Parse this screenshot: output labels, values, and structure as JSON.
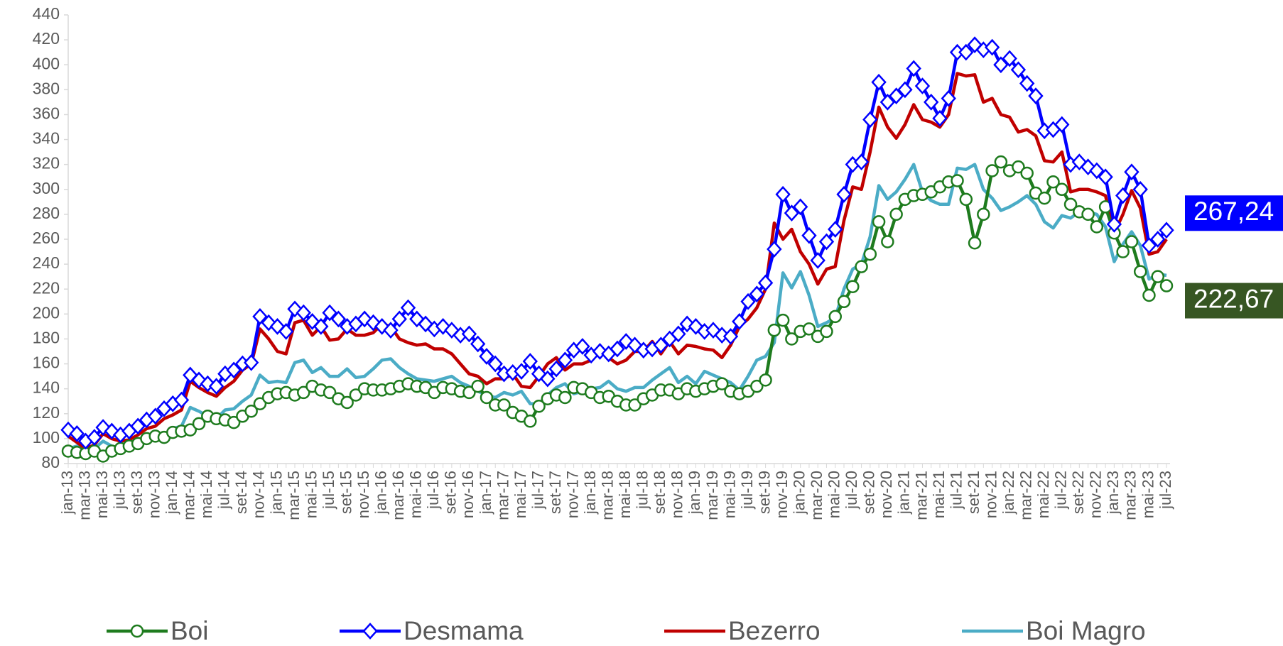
{
  "chart_data": {
    "type": "line",
    "categories": [
      "jan-13",
      null,
      "mar-13",
      null,
      "mai-13",
      null,
      "jul-13",
      null,
      "set-13",
      null,
      "nov-13",
      null,
      "jan-14",
      null,
      "mar-14",
      null,
      "mai-14",
      null,
      "jul-14",
      null,
      "set-14",
      null,
      "nov-14",
      null,
      "jan-15",
      null,
      "mar-15",
      null,
      "mai-15",
      null,
      "jul-15",
      null,
      "set-15",
      null,
      "nov-15",
      null,
      "jan-16",
      null,
      "mar-16",
      null,
      "mai-16",
      null,
      "jul-16",
      null,
      "set-16",
      null,
      "nov-16",
      null,
      "jan-17",
      null,
      "mar-17",
      null,
      "mai-17",
      null,
      "jul-17",
      null,
      "set-17",
      null,
      "nov-17",
      null,
      "jan-18",
      null,
      "mar-18",
      null,
      "mai-18",
      null,
      "jul-18",
      null,
      "set-18",
      null,
      "nov-18",
      null,
      "jan-19",
      null,
      "mar-19",
      null,
      "mai-19",
      null,
      "jul-19",
      null,
      "set-19",
      null,
      "nov-19",
      null,
      "jan-20",
      null,
      "mar-20",
      null,
      "mai-20",
      null,
      "jul-20",
      null,
      "set-20",
      null,
      "nov-20",
      null,
      "jan-21",
      null,
      "mar-21",
      null,
      "mai-21",
      null,
      "jul-21",
      null,
      "set-21",
      null,
      "nov-21",
      null,
      "jan-22",
      null,
      "mar-22",
      null,
      "mai-22",
      null,
      "jul-22",
      null,
      "set-22",
      null,
      "nov-22",
      null,
      "jan-23",
      null,
      "mar-23",
      null,
      "mai-23",
      null,
      "jul-23"
    ],
    "ylim": [
      80,
      440
    ],
    "yticks": [
      80,
      100,
      120,
      140,
      160,
      180,
      200,
      220,
      240,
      260,
      280,
      300,
      320,
      340,
      360,
      380,
      400,
      420,
      440
    ],
    "grid": false,
    "legend": "bottom",
    "series": [
      {
        "name": "Boi",
        "color": "#1e7b1e",
        "label_color": "#375623",
        "marker": "circle",
        "values": [
          90,
          89,
          88,
          90,
          86,
          90,
          92,
          94,
          96,
          100,
          102,
          101,
          105,
          106,
          107,
          112,
          118,
          116,
          115,
          113,
          118,
          122,
          128,
          133,
          136,
          137,
          135,
          137,
          142,
          139,
          137,
          132,
          129,
          135,
          140,
          139,
          139,
          140,
          142,
          144,
          142,
          141,
          137,
          141,
          140,
          138,
          137,
          142,
          133,
          127,
          127,
          121,
          118,
          114,
          126,
          132,
          135,
          133,
          141,
          140,
          137,
          133,
          134,
          130,
          127,
          127,
          132,
          135,
          139,
          139,
          136,
          140,
          138,
          140,
          142,
          144,
          138,
          136,
          138,
          142,
          147,
          187,
          195,
          180,
          186,
          188,
          182,
          186,
          198,
          210,
          222,
          238,
          248,
          274,
          258,
          280,
          292,
          295,
          296,
          298,
          302,
          306,
          307,
          292,
          257,
          280,
          315,
          322,
          315,
          318,
          313,
          297,
          293,
          306,
          300,
          288,
          282,
          280,
          270,
          286,
          265,
          250,
          258,
          234,
          215,
          230,
          222.67
        ],
        "value_labels": [
          null,
          null,
          null,
          null,
          null,
          null,
          null,
          null,
          null,
          null,
          null,
          null,
          null,
          null,
          null,
          null,
          null,
          null,
          null,
          null,
          null,
          null,
          null,
          null,
          null,
          null,
          null,
          null,
          null,
          null,
          null,
          null,
          null,
          null,
          null,
          null,
          null,
          null,
          null,
          null,
          null,
          null,
          null,
          null,
          null,
          null,
          null,
          null,
          null,
          null,
          null,
          null,
          null,
          null,
          null,
          null,
          null,
          null,
          null,
          null,
          null,
          null,
          null,
          null,
          null,
          null,
          null,
          null,
          null,
          null,
          null,
          null,
          null,
          null,
          null,
          null,
          null,
          null,
          null,
          null,
          null,
          null,
          null,
          null,
          null,
          null,
          null,
          null,
          null,
          null,
          null,
          null,
          null,
          null,
          null,
          null,
          null,
          null,
          null,
          null,
          null,
          null,
          null,
          null,
          null,
          null,
          null,
          null,
          null,
          null,
          null,
          null,
          null,
          null,
          null,
          null,
          null,
          null,
          null,
          null,
          null,
          null,
          null,
          null,
          null,
          null,
          "222,67"
        ]
      },
      {
        "name": "Desmama",
        "color": "#0000ff",
        "label_color": "#0000ff",
        "marker": "diamond",
        "values": [
          107,
          104,
          98,
          101,
          109,
          106,
          103,
          106,
          110,
          115,
          118,
          124,
          128,
          131,
          151,
          147,
          144,
          142,
          152,
          155,
          160,
          161,
          198,
          193,
          190,
          186,
          204,
          201,
          194,
          190,
          201,
          196,
          190,
          192,
          196,
          193,
          190,
          187,
          196,
          205,
          196,
          192,
          188,
          190,
          187,
          183,
          184,
          176,
          166,
          160,
          152,
          153,
          154,
          162,
          152,
          148,
          156,
          163,
          171,
          174,
          167,
          170,
          168,
          172,
          178,
          175,
          171,
          172,
          175,
          180,
          184,
          192,
          190,
          186,
          187,
          183,
          182,
          194,
          210,
          216,
          225,
          252,
          296,
          281,
          286,
          263,
          243,
          258,
          268,
          296,
          320,
          322,
          356,
          386,
          370,
          375,
          380,
          397,
          383,
          370,
          357,
          373,
          410,
          410,
          416,
          412,
          414,
          400,
          405,
          396,
          385,
          375,
          347,
          348,
          352,
          320,
          322,
          318,
          315,
          310,
          272,
          295,
          314,
          300,
          255,
          260,
          267.24
        ],
        "value_labels": [
          null,
          null,
          null,
          null,
          null,
          null,
          null,
          null,
          null,
          null,
          null,
          null,
          null,
          null,
          null,
          null,
          null,
          null,
          null,
          null,
          null,
          null,
          null,
          null,
          null,
          null,
          null,
          null,
          null,
          null,
          null,
          null,
          null,
          null,
          null,
          null,
          null,
          null,
          null,
          null,
          null,
          null,
          null,
          null,
          null,
          null,
          null,
          null,
          null,
          null,
          null,
          null,
          null,
          null,
          null,
          null,
          null,
          null,
          null,
          null,
          null,
          null,
          null,
          null,
          null,
          null,
          null,
          null,
          null,
          null,
          null,
          null,
          null,
          null,
          null,
          null,
          null,
          null,
          null,
          null,
          null,
          null,
          null,
          null,
          null,
          null,
          null,
          null,
          null,
          null,
          null,
          null,
          null,
          null,
          null,
          null,
          null,
          null,
          null,
          null,
          null,
          null,
          null,
          null,
          null,
          null,
          null,
          null,
          null,
          null,
          null,
          null,
          null,
          null,
          null,
          null,
          null,
          null,
          null,
          null,
          null,
          null,
          null,
          null,
          null,
          null,
          "267,24"
        ]
      },
      {
        "name": "Bezerro",
        "color": "#c00000",
        "marker": null,
        "values": [
          102,
          97,
          92,
          95,
          104,
          100,
          98,
          99,
          103,
          108,
          110,
          116,
          119,
          123,
          146,
          141,
          137,
          134,
          141,
          146,
          155,
          160,
          188,
          180,
          170,
          168,
          193,
          195,
          183,
          190,
          179,
          180,
          188,
          183,
          183,
          185,
          192,
          190,
          180,
          177,
          175,
          176,
          172,
          172,
          168,
          160,
          152,
          150,
          144,
          148,
          148,
          152,
          142,
          141,
          150,
          160,
          165,
          155,
          160,
          160,
          163,
          170,
          165,
          160,
          163,
          170,
          170,
          178,
          168,
          178,
          168,
          175,
          174,
          172,
          171,
          165,
          175,
          190,
          196,
          205,
          220,
          273,
          260,
          268,
          250,
          240,
          224,
          236,
          238,
          275,
          302,
          300,
          330,
          366,
          350,
          341,
          352,
          368,
          356,
          354,
          350,
          360,
          393,
          391,
          392,
          370,
          373,
          360,
          358,
          346,
          348,
          343,
          323,
          322,
          330,
          298,
          300,
          300,
          298,
          295,
          265,
          280,
          299,
          285,
          248,
          250,
          260
        ]
      },
      {
        "name": "Boi Magro",
        "color": "#4bacc6",
        "marker": null,
        "values": [
          92,
          94,
          90,
          92,
          98,
          94,
          92,
          95,
          98,
          102,
          104,
          103,
          108,
          110,
          125,
          122,
          118,
          116,
          123,
          124,
          130,
          135,
          151,
          145,
          146,
          145,
          161,
          163,
          153,
          157,
          150,
          150,
          156,
          149,
          150,
          156,
          163,
          164,
          157,
          152,
          148,
          147,
          146,
          148,
          150,
          145,
          142,
          138,
          135,
          133,
          137,
          135,
          138,
          128,
          128,
          135,
          141,
          144,
          136,
          138,
          140,
          141,
          146,
          140,
          138,
          141,
          141,
          147,
          152,
          157,
          145,
          150,
          144,
          154,
          151,
          148,
          145,
          139,
          150,
          163,
          166,
          177,
          233,
          221,
          234,
          215,
          190,
          193,
          197,
          220,
          236,
          240,
          262,
          303,
          292,
          298,
          308,
          320,
          298,
          291,
          288,
          288,
          317,
          316,
          320,
          300,
          293,
          283,
          286,
          290,
          295,
          288,
          274,
          269,
          279,
          277,
          282,
          282,
          280,
          270,
          242,
          256,
          266,
          255,
          228,
          232,
          231
        ]
      }
    ]
  }
}
